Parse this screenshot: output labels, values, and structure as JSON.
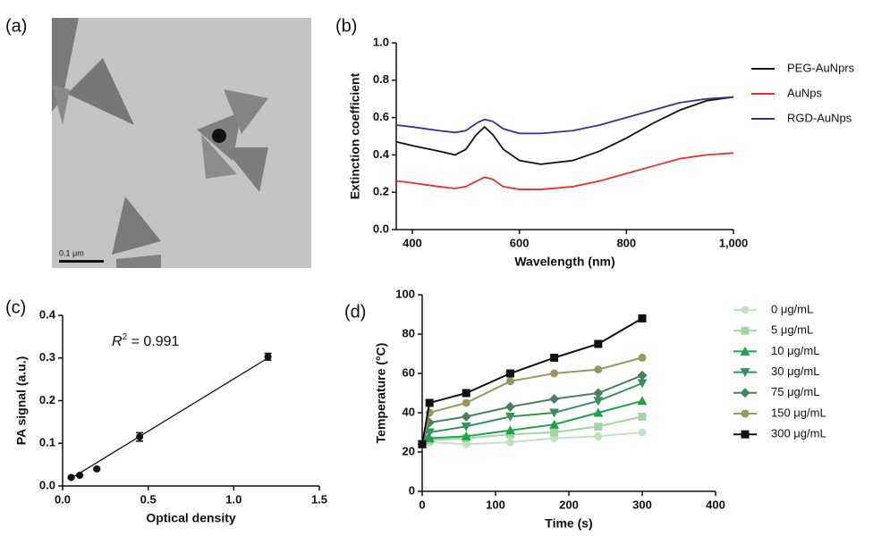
{
  "image": {
    "label": "(a)",
    "scale_bar": "0.1 μm"
  },
  "chart_data": [
    {
      "type": "line",
      "label": "(b)",
      "x_label": "Wavelength (nm)",
      "y_label": "Extinction coefficient",
      "x": [
        370,
        400,
        450,
        480,
        500,
        520,
        535,
        550,
        570,
        600,
        640,
        700,
        750,
        800,
        850,
        900,
        950,
        1000
      ],
      "xlim": [
        370,
        1000
      ],
      "xticks": [
        400,
        600,
        800,
        {
          "value": 1000,
          "label": "1,000"
        }
      ],
      "ylim": [
        0,
        1
      ],
      "yticks": [
        {
          "value": 0,
          "label": "0.0"
        },
        0.2,
        0.4,
        0.6,
        0.8,
        {
          "value": 1,
          "label": "1.0"
        }
      ],
      "legend": "right",
      "series": [
        {
          "name": "PEG-AuNprs",
          "color": "#111111",
          "values": [
            0.47,
            0.45,
            0.42,
            0.4,
            0.43,
            0.51,
            0.55,
            0.51,
            0.43,
            0.37,
            0.35,
            0.37,
            0.42,
            0.49,
            0.57,
            0.64,
            0.69,
            0.71
          ]
        },
        {
          "name": "AuNps",
          "color": "#e8322f",
          "values": [
            0.26,
            0.25,
            0.23,
            0.22,
            0.23,
            0.26,
            0.28,
            0.27,
            0.23,
            0.215,
            0.215,
            0.23,
            0.26,
            0.3,
            0.34,
            0.38,
            0.4,
            0.41
          ]
        },
        {
          "name": "RGD-AuNps",
          "color": "#3b2f8f",
          "values": [
            0.56,
            0.55,
            0.53,
            0.52,
            0.53,
            0.57,
            0.59,
            0.58,
            0.54,
            0.515,
            0.515,
            0.53,
            0.56,
            0.6,
            0.64,
            0.68,
            0.7,
            0.71
          ]
        }
      ]
    },
    {
      "type": "scatter",
      "label": "(c)",
      "x_label": "Optical density",
      "y_label": "PA signal (a.u.)",
      "annotation": [
        "R",
        "2",
        " = 0.991"
      ],
      "x": [
        0.05,
        0.1,
        0.2,
        0.45,
        1.2
      ],
      "values": [
        0.02,
        0.025,
        0.04,
        0.115,
        0.303
      ],
      "errors": [
        0.002,
        0.002,
        0.003,
        0.01,
        0.008
      ],
      "color": "#111111",
      "fit": {
        "x": [
          0.05,
          1.2
        ],
        "values": [
          0.018,
          0.3
        ]
      },
      "xlim": [
        0,
        1.5
      ],
      "xticks": [
        {
          "value": 0,
          "label": "0.0"
        },
        0.5,
        {
          "value": 1,
          "label": "1.0"
        },
        1.5
      ],
      "ylim": [
        0,
        0.4
      ],
      "yticks": [
        {
          "value": 0,
          "label": "0.0"
        },
        0.1,
        0.2,
        0.3,
        0.4
      ]
    },
    {
      "type": "line",
      "label": "(d)",
      "x_label": "Time (s)",
      "y_label": "Temperature (°C)",
      "x": [
        0,
        10,
        60,
        120,
        180,
        240,
        300
      ],
      "xlim": [
        0,
        400
      ],
      "xticks": [
        0,
        100,
        200,
        300,
        400
      ],
      "ylim": [
        0,
        100
      ],
      "yticks": [
        0,
        20,
        40,
        60,
        80,
        100
      ],
      "legend": "right",
      "series": [
        {
          "name": "0  μg/mL",
          "color": "#c3e3c0",
          "marker": "circle",
          "values": [
            24,
            25,
            24,
            25,
            27,
            28,
            30
          ]
        },
        {
          "name": "5  μg/mL",
          "color": "#a3d6a3",
          "marker": "square",
          "values": [
            24,
            26,
            27,
            29,
            30,
            33,
            38
          ]
        },
        {
          "name": "10  μg/mL",
          "color": "#22a04a",
          "marker": "triangle-up",
          "values": [
            24,
            27,
            28,
            31,
            34,
            40,
            46
          ]
        },
        {
          "name": "30  μg/mL",
          "color": "#33935a",
          "marker": "triangle-down",
          "values": [
            24,
            30,
            33,
            38,
            40,
            46,
            55
          ]
        },
        {
          "name": "75  μg/mL",
          "color": "#4d7e62",
          "marker": "diamond",
          "values": [
            24,
            35,
            38,
            43,
            47,
            50,
            59
          ]
        },
        {
          "name": "150  μg/mL",
          "color": "#9a9660",
          "marker": "circle",
          "values": [
            24,
            40,
            45,
            56,
            60,
            62,
            68
          ]
        },
        {
          "name": "300  μg/mL",
          "color": "#111111",
          "marker": "square",
          "values": [
            24,
            45,
            50,
            60,
            68,
            75,
            88
          ]
        }
      ]
    }
  ]
}
